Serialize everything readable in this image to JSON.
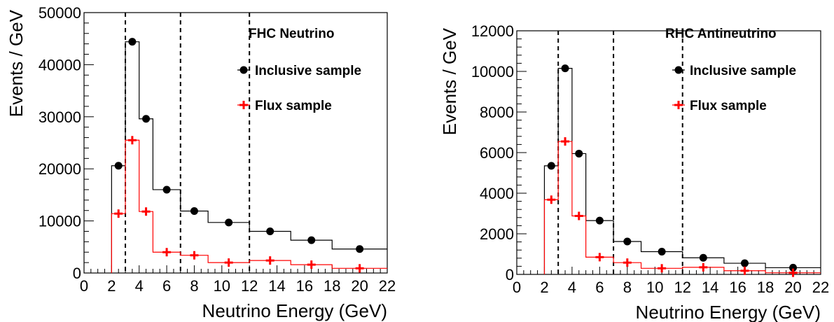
{
  "chart_data": [
    {
      "type": "histogram",
      "title": "",
      "xlabel": "Neutrino Energy (GeV)",
      "ylabel": "Events / GeV",
      "xlim": [
        0,
        22
      ],
      "ylim": [
        0,
        50000
      ],
      "xticks": [
        0,
        2,
        4,
        6,
        8,
        10,
        12,
        14,
        16,
        18,
        20,
        22
      ],
      "yticks": [
        0,
        10000,
        20000,
        30000,
        40000,
        50000
      ],
      "bin_edges": [
        2,
        3,
        4,
        5,
        7,
        9,
        12,
        15,
        18,
        22
      ],
      "vertical_lines": [
        3,
        7,
        12
      ],
      "annotation": "FHC Neutrino",
      "legend_position": "top-right",
      "series": [
        {
          "name": "Inclusive sample",
          "color": "#000000",
          "marker": "circle",
          "values": [
            20600,
            44400,
            29600,
            16000,
            11900,
            9700,
            8000,
            6300,
            4600
          ]
        },
        {
          "name": "Flux sample",
          "color": "#ff0000",
          "marker": "plus",
          "values": [
            11400,
            25500,
            11800,
            4000,
            3400,
            2000,
            2400,
            1600,
            900
          ]
        }
      ]
    },
    {
      "type": "histogram",
      "title": "",
      "xlabel": "Neutrino Energy (GeV)",
      "ylabel": "Events / GeV",
      "xlim": [
        0,
        22
      ],
      "ylim": [
        0,
        12000
      ],
      "xticks": [
        0,
        2,
        4,
        6,
        8,
        10,
        12,
        14,
        16,
        18,
        20,
        22
      ],
      "yticks": [
        0,
        2000,
        4000,
        6000,
        8000,
        10000,
        12000
      ],
      "bin_edges": [
        2,
        3,
        4,
        5,
        7,
        9,
        12,
        15,
        18,
        22
      ],
      "vertical_lines": [
        3,
        7,
        12
      ],
      "annotation": "RHC Antineutrino",
      "legend_position": "top-right",
      "series": [
        {
          "name": "Inclusive sample",
          "color": "#000000",
          "marker": "circle",
          "values": [
            5350,
            10150,
            5950,
            2650,
            1620,
            1120,
            820,
            550,
            330
          ]
        },
        {
          "name": "Flux sample",
          "color": "#ff0000",
          "marker": "plus",
          "values": [
            3680,
            6550,
            2880,
            850,
            580,
            300,
            350,
            180,
            80
          ]
        }
      ]
    }
  ]
}
